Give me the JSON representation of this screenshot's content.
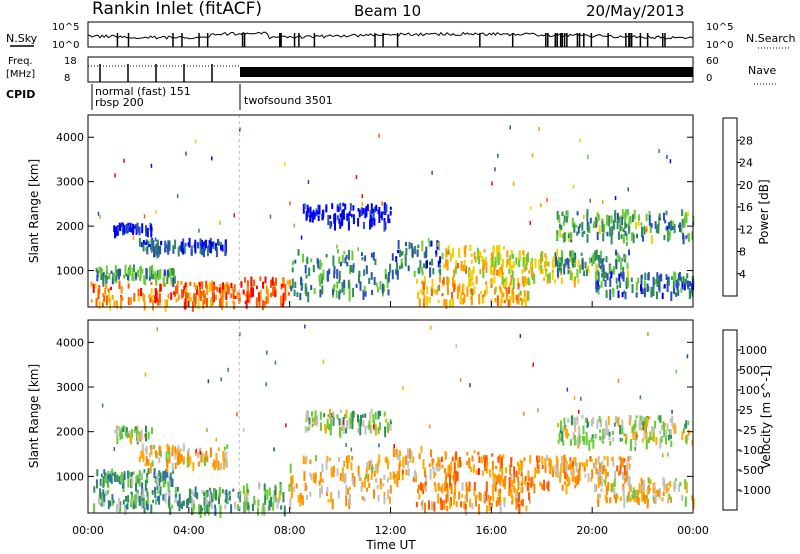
{
  "header": {
    "station": "Rankin Inlet (fitACF)",
    "beam": "Beam 10",
    "date": "20/May/2013"
  },
  "noise_panel": {
    "left_label": "N.Sky",
    "right_label": "N.Search",
    "left_ticks": [
      "10^5",
      "10^0"
    ],
    "right_ticks": [
      "10^5",
      "10^0"
    ]
  },
  "freq_panel": {
    "left_label_1": "Freq.",
    "left_label_2": "[MHz]",
    "left_ticks": [
      "18",
      "8"
    ],
    "right_label": "Nave",
    "right_ticks": [
      "60",
      "0"
    ]
  },
  "cpid": {
    "label": "CPID",
    "modes": [
      {
        "text": "normal (fast) 151",
        "start_hour": 0.1
      },
      {
        "text": "rbsp 200",
        "start_hour": 0.1
      },
      {
        "text": "twofsound 3501",
        "start_hour": 6.0
      }
    ]
  },
  "chart_data": [
    {
      "type": "heatmap",
      "quantity": "Power",
      "ylabel": "Slant Range [km]",
      "xlim": [
        0,
        24
      ],
      "ylim": [
        180,
        4500
      ],
      "yticks": [
        "1000",
        "2000",
        "3000",
        "4000"
      ],
      "colorbar": {
        "label": "Power [dB]",
        "ticks": [
          "4",
          "8",
          "12",
          "16",
          "20",
          "24",
          "28"
        ],
        "colors": [
          "#0000ff",
          "#2a4fb8",
          "#2f8c5a",
          "#66cc33",
          "#f5d000",
          "#ff9a00",
          "#ff5a00",
          "#ff0000"
        ]
      },
      "regions": [
        {
          "t": [
            0.1,
            6.0
          ],
          "r": [
            200,
            700
          ],
          "level": 0.75
        },
        {
          "t": [
            0.3,
            3.5
          ],
          "r": [
            750,
            1050
          ],
          "level": 0.35
        },
        {
          "t": [
            1.0,
            2.5
          ],
          "r": [
            1850,
            2000
          ],
          "level": 0.05
        },
        {
          "t": [
            2.0,
            5.5
          ],
          "r": [
            1400,
            1650
          ],
          "level": 0.2
        },
        {
          "t": [
            6.0,
            8.0
          ],
          "r": [
            200,
            800
          ],
          "level": 0.8
        },
        {
          "t": [
            8.0,
            12.0
          ],
          "r": [
            400,
            1400
          ],
          "level": 0.3
        },
        {
          "t": [
            8.5,
            12.0
          ],
          "r": [
            2000,
            2450
          ],
          "level": 0.05
        },
        {
          "t": [
            12.0,
            14.0
          ],
          "r": [
            900,
            1600
          ],
          "level": 0.25
        },
        {
          "t": [
            13.0,
            17.5
          ],
          "r": [
            250,
            800
          ],
          "level": 0.65
        },
        {
          "t": [
            14.0,
            16.5
          ],
          "r": [
            900,
            1500
          ],
          "level": 0.6
        },
        {
          "t": [
            16.0,
            19.5
          ],
          "r": [
            700,
            1400
          ],
          "level": 0.55
        },
        {
          "t": [
            18.5,
            21.5
          ],
          "r": [
            900,
            1400
          ],
          "level": 0.35
        },
        {
          "t": [
            18.5,
            24.0
          ],
          "r": [
            1700,
            2300
          ],
          "level": 0.35
        },
        {
          "t": [
            20.0,
            24.0
          ],
          "r": [
            400,
            900
          ],
          "level": 0.25
        }
      ]
    },
    {
      "type": "heatmap",
      "quantity": "Velocity",
      "xlabel": "Time UT",
      "ylabel": "Slant Range [km]",
      "xlim": [
        0,
        24
      ],
      "ylim": [
        180,
        4500
      ],
      "xticks": [
        "00:00",
        "04:00",
        "08:00",
        "12:00",
        "16:00",
        "20:00",
        "00:00"
      ],
      "yticks": [
        "1000",
        "2000",
        "3000",
        "4000"
      ],
      "colorbar": {
        "label": "Velocity [m s^-1]",
        "ticks": [
          "1000",
          "500",
          "100",
          "25",
          "-25",
          "-100",
          "-500",
          "-1000"
        ],
        "colors": [
          "#1c3fc4",
          "#2a6fb3",
          "#2f8c5a",
          "#66cc33",
          "#c0c0c0",
          "#ffaa00",
          "#ff8800",
          "#ff5500",
          "#ff0000"
        ]
      },
      "regions": [
        {
          "t": [
            0.1,
            6.0
          ],
          "r": [
            200,
            700
          ],
          "level": 0.35
        },
        {
          "t": [
            0.3,
            3.5
          ],
          "r": [
            750,
            1100
          ],
          "level": 0.3
        },
        {
          "t": [
            1.0,
            2.5
          ],
          "r": [
            1850,
            2050
          ],
          "level": 0.45
        },
        {
          "t": [
            2.0,
            5.5
          ],
          "r": [
            1200,
            1650
          ],
          "level": 0.6
        },
        {
          "t": [
            6.0,
            8.0
          ],
          "r": [
            200,
            800
          ],
          "level": 0.4
        },
        {
          "t": [
            8.0,
            12.0
          ],
          "r": [
            400,
            1400
          ],
          "level": 0.6
        },
        {
          "t": [
            8.5,
            12.0
          ],
          "r": [
            2000,
            2450
          ],
          "level": 0.45
        },
        {
          "t": [
            12.0,
            14.0
          ],
          "r": [
            900,
            1600
          ],
          "level": 0.62
        },
        {
          "t": [
            13.0,
            17.5
          ],
          "r": [
            250,
            800
          ],
          "level": 0.68
        },
        {
          "t": [
            14.0,
            16.5
          ],
          "r": [
            900,
            1500
          ],
          "level": 0.72
        },
        {
          "t": [
            16.0,
            19.5
          ],
          "r": [
            700,
            1400
          ],
          "level": 0.7
        },
        {
          "t": [
            18.5,
            21.5
          ],
          "r": [
            900,
            1400
          ],
          "level": 0.62
        },
        {
          "t": [
            18.5,
            24.0
          ],
          "r": [
            1700,
            2300
          ],
          "level": 0.45
        },
        {
          "t": [
            20.0,
            24.0
          ],
          "r": [
            400,
            900
          ],
          "level": 0.58
        }
      ]
    }
  ]
}
